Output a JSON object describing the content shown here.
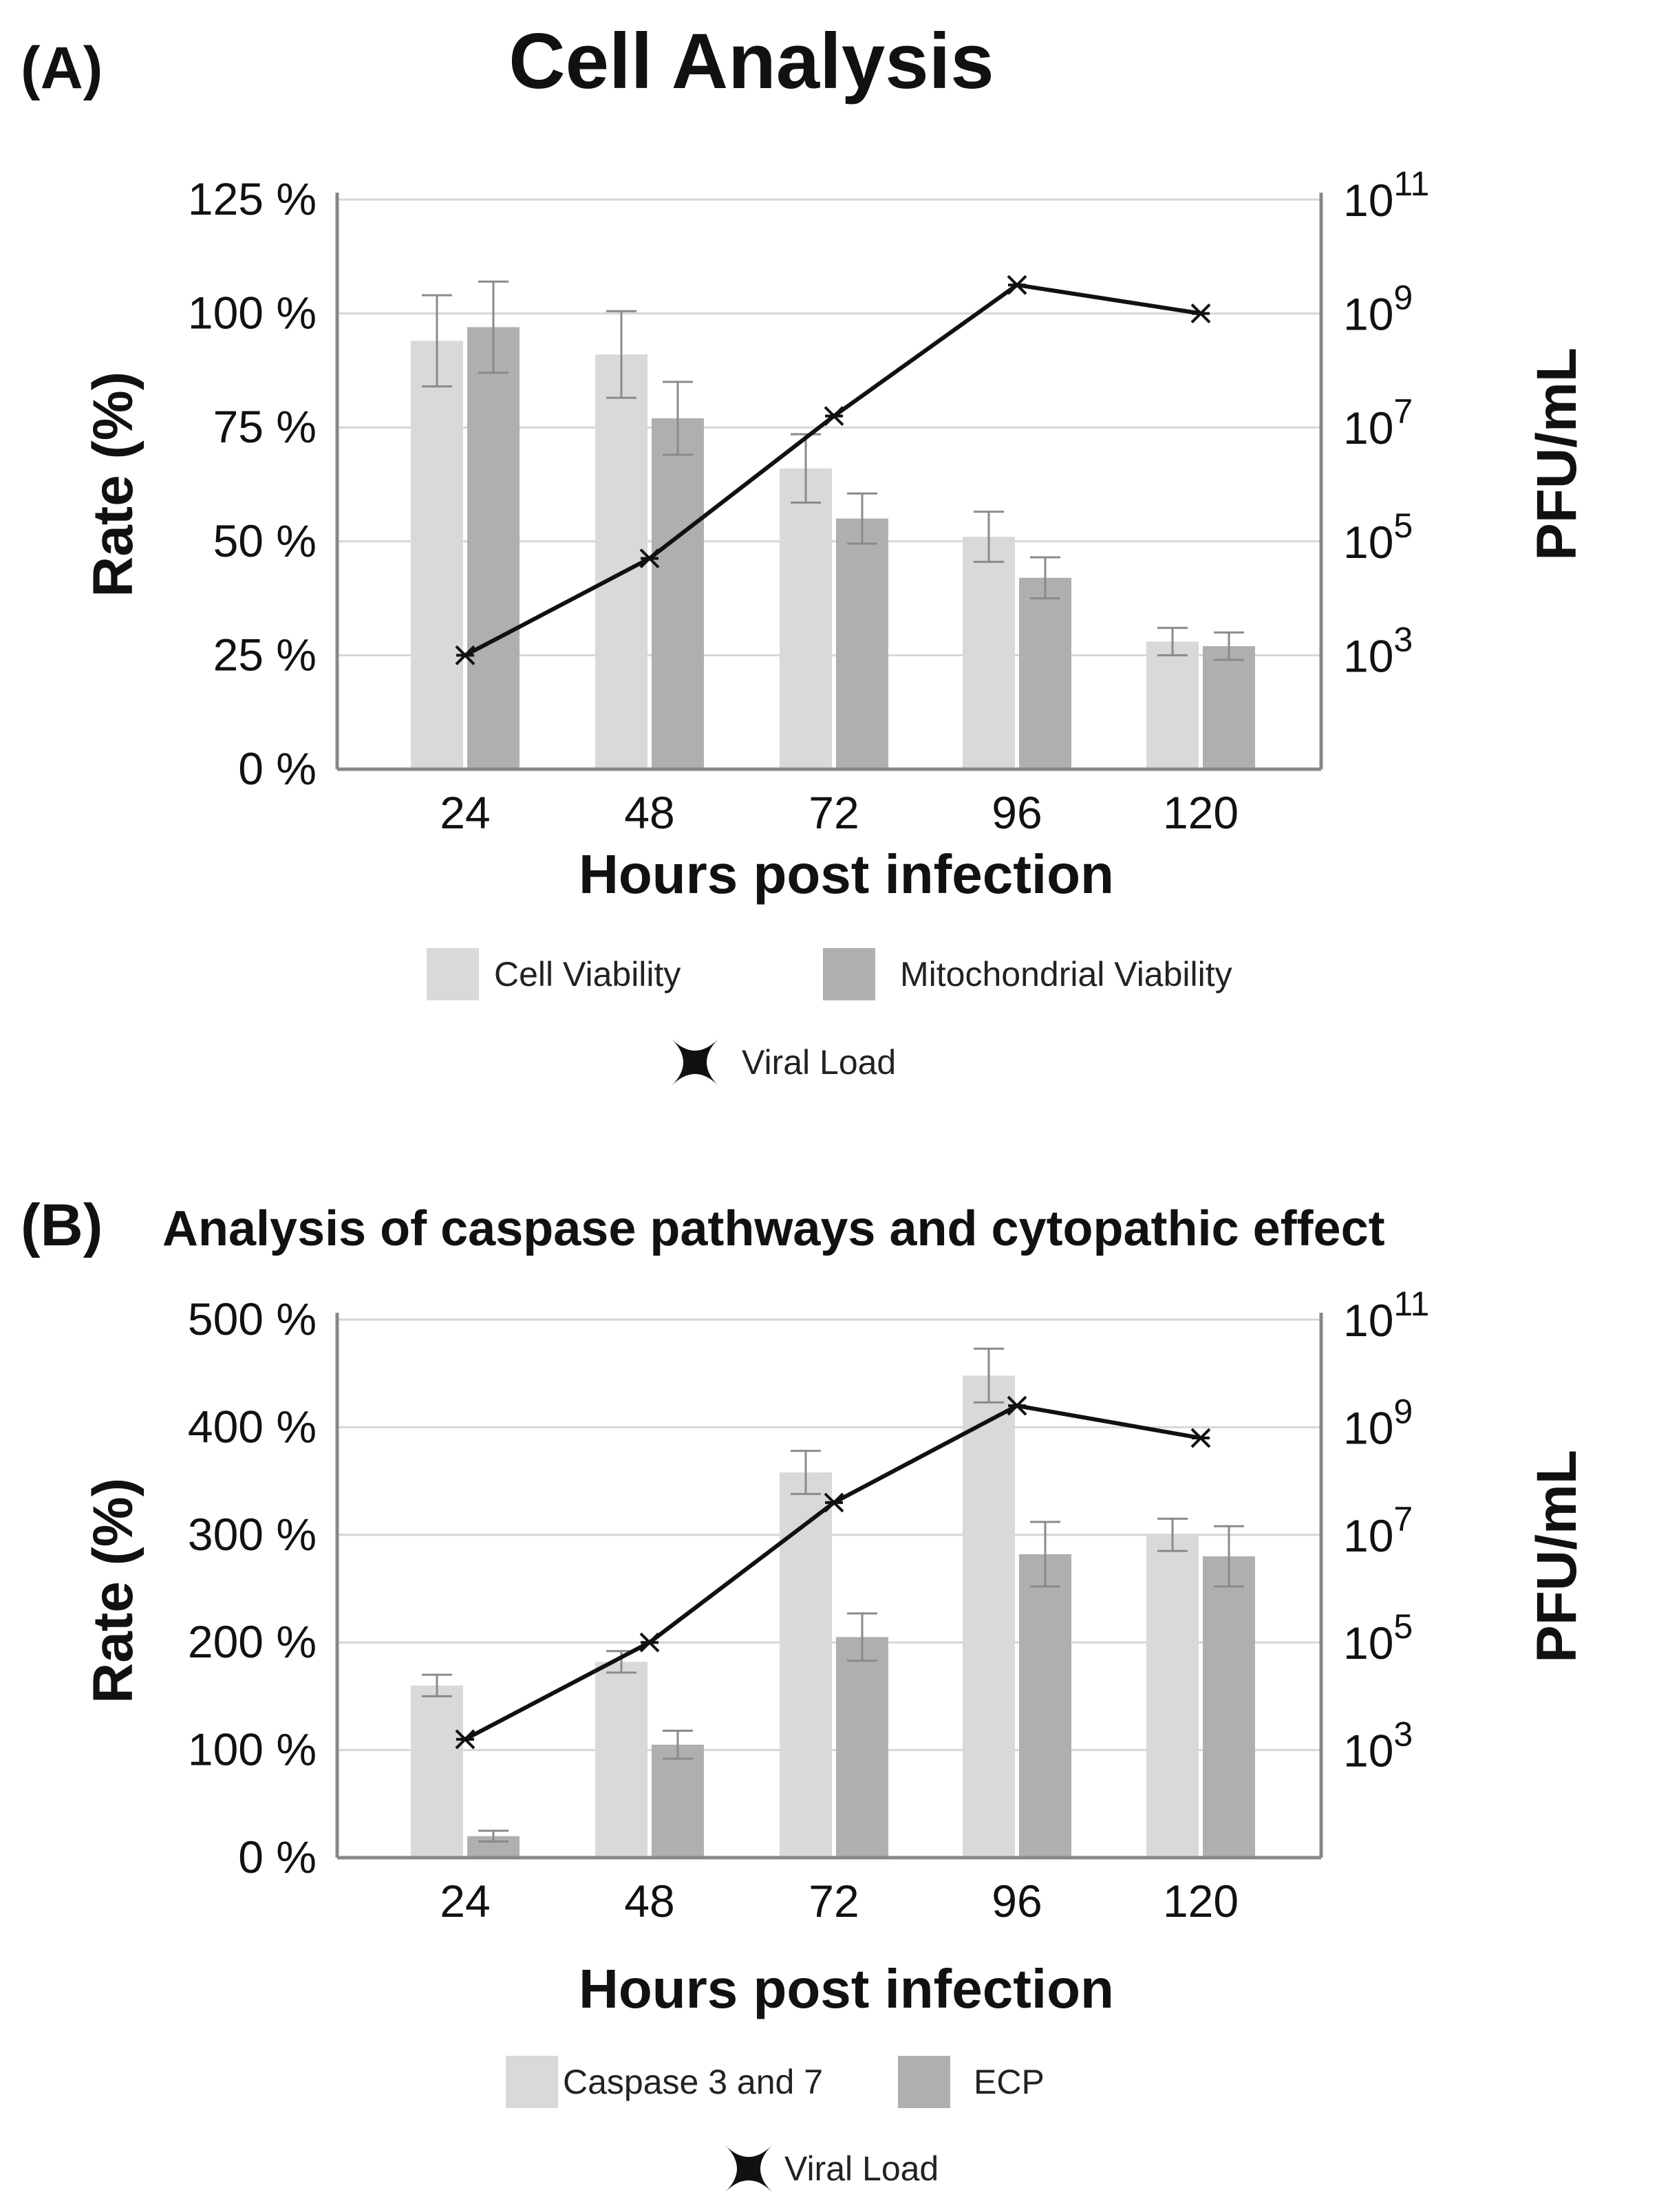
{
  "colors": {
    "light_bar": "#d9d9d9",
    "dark_bar": "#afafaf",
    "line": "#111111"
  },
  "chart_data": [
    {
      "type": "bar",
      "panel_label": "(A)",
      "title": "Cell Analysis",
      "xlabel": "Hours post infection",
      "ylabel": "Rate (%)",
      "ylabel_right": "PFU/mL",
      "categories": [
        "24",
        "48",
        "72",
        "96",
        "120"
      ],
      "ylim": [
        0,
        125
      ],
      "yticks": [
        0,
        25,
        50,
        75,
        100,
        125
      ],
      "ytick_labels": [
        "0 %",
        "25 %",
        "50 %",
        "75 %",
        "100 %",
        "125 %"
      ],
      "right_axis": {
        "scale": "log",
        "lim_exponents": [
          1,
          11
        ],
        "tick_exponents": [
          3,
          5,
          7,
          9,
          11
        ],
        "tick_base": "10"
      },
      "series": [
        {
          "name": "Cell Viability",
          "values": [
            94,
            91,
            66,
            51,
            28
          ],
          "errors": [
            10,
            9.5,
            7.5,
            5.5,
            3
          ]
        },
        {
          "name": "Mitochondrial Viability",
          "values": [
            97,
            77,
            55,
            42,
            27
          ],
          "errors": [
            10,
            8,
            5.5,
            4.5,
            3
          ]
        }
      ],
      "line_series": {
        "name": "Viral Load",
        "values_log10": [
          3,
          4.7,
          7.2,
          9.5,
          9.0
        ]
      },
      "legend": [
        "Cell Viability",
        "Mitochondrial Viability",
        "Viral Load"
      ]
    },
    {
      "type": "bar",
      "panel_label": "(B)",
      "title": "Analysis of caspase pathways and cytopathic effect",
      "xlabel": "Hours post infection",
      "ylabel": "Rate (%)",
      "ylabel_right": "PFU/mL",
      "categories": [
        "24",
        "48",
        "72",
        "96",
        "120"
      ],
      "ylim": [
        0,
        500
      ],
      "yticks": [
        0,
        100,
        200,
        300,
        400,
        500
      ],
      "ytick_labels": [
        "0 %",
        "100 %",
        "200 %",
        "300 %",
        "400 %",
        "500 %"
      ],
      "right_axis": {
        "scale": "log",
        "lim_exponents": [
          1,
          11
        ],
        "tick_exponents": [
          3,
          5,
          7,
          9,
          11
        ],
        "tick_base": "10"
      },
      "series": [
        {
          "name": "Caspase 3 and 7",
          "values": [
            160,
            182,
            358,
            448,
            300
          ],
          "errors": [
            10,
            10,
            20,
            25,
            15
          ]
        },
        {
          "name": "ECP",
          "values": [
            20,
            105,
            205,
            282,
            280
          ],
          "errors": [
            5,
            13,
            22,
            30,
            28
          ]
        }
      ],
      "line_series": {
        "name": "Viral Load",
        "values_log10": [
          3.2,
          5.0,
          7.6,
          9.4,
          8.8
        ]
      },
      "legend": [
        "Caspase 3 and 7",
        "ECP",
        "Viral Load"
      ]
    }
  ]
}
